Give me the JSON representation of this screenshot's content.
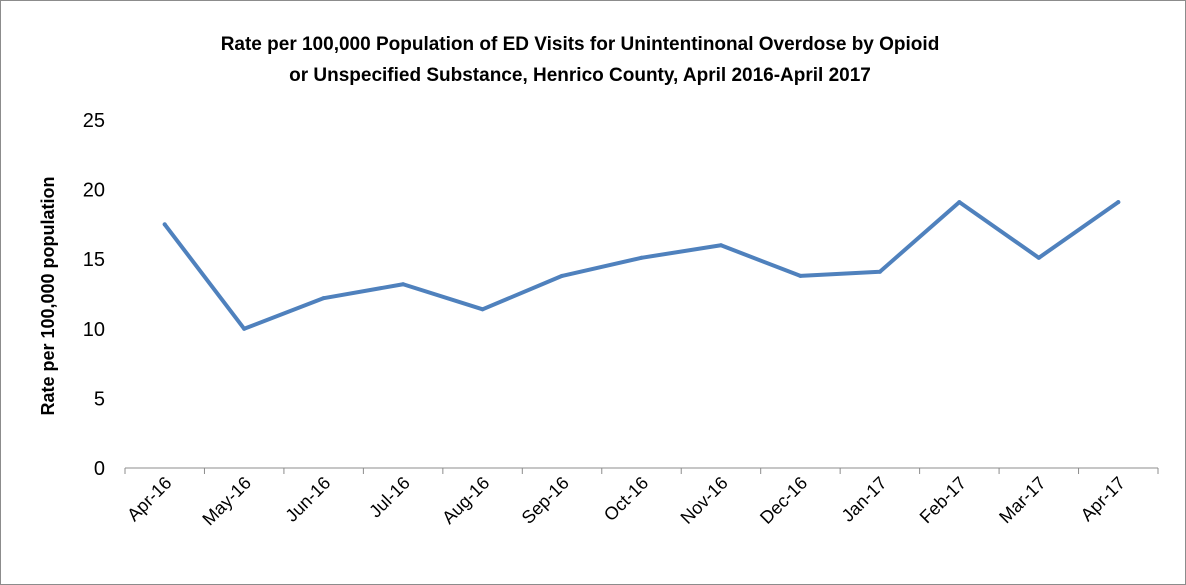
{
  "chart_data": {
    "type": "line",
    "title_line1": "Rate per 100,000 Population of ED Visits for Unintentinonal Overdose by Opioid",
    "title_line2": "or Unspecified Substance, Henrico County, April 2016-April 2017",
    "xlabel": "",
    "ylabel": "Rate per 100,000 population",
    "ylim": [
      0,
      25
    ],
    "yticks": [
      "0",
      "5",
      "10",
      "15",
      "20",
      "25"
    ],
    "grid": false,
    "legend": "none",
    "categories": [
      "Apr-16",
      "May-16",
      "Jun-16",
      "Jul-16",
      "Aug-16",
      "Sep-16",
      "Oct-16",
      "Nov-16",
      "Dec-16",
      "Jan-17",
      "Feb-17",
      "Mar-17",
      "Apr-17"
    ],
    "series": [
      {
        "values": [
          17.5,
          10.0,
          12.2,
          13.2,
          11.4,
          13.8,
          15.1,
          16.0,
          13.8,
          14.1,
          19.1,
          15.1,
          19.1
        ],
        "color": "#4f81bd"
      }
    ]
  }
}
